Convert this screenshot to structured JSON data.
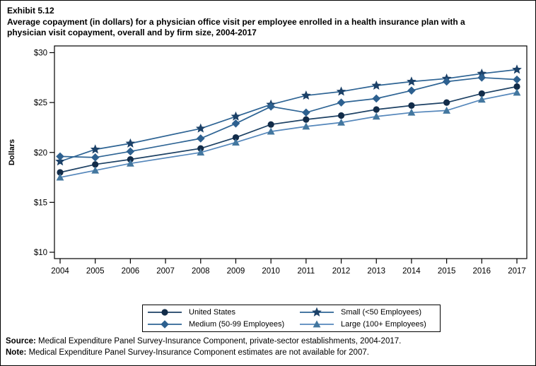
{
  "chart_data": {
    "type": "line",
    "exhibit_label": "Exhibit 5.12",
    "title_line1": "Average copayment (in dollars) for a physician office visit per employee enrolled in a health insurance plan with a",
    "title_line2": "physician visit copayment, overall and by firm size, 2004-2017",
    "ylabel": "Dollars",
    "ylim": [
      10,
      30
    ],
    "yticks": [
      {
        "value": 10,
        "label": "$10"
      },
      {
        "value": 15,
        "label": "$15"
      },
      {
        "value": 20,
        "label": "$20"
      },
      {
        "value": 25,
        "label": "$25"
      },
      {
        "value": 30,
        "label": "$30"
      }
    ],
    "x": [
      2004,
      2005,
      2006,
      2007,
      2008,
      2009,
      2010,
      2011,
      2012,
      2013,
      2014,
      2015,
      2016,
      2017
    ],
    "missing_year": 2007,
    "legend_position": "bottom-center",
    "grid": "off",
    "series": [
      {
        "name": "United States",
        "marker": "circle",
        "line_color": "#1d4164",
        "marker_color": "#122c49",
        "values": [
          18.0,
          18.8,
          19.3,
          null,
          20.4,
          21.5,
          22.8,
          23.3,
          23.7,
          24.3,
          24.7,
          25.0,
          25.9,
          26.6
        ]
      },
      {
        "name": "Small (<50 Employees)",
        "marker": "star",
        "line_color": "#2e6494",
        "marker_color": "#1c4168",
        "values": [
          19.1,
          20.3,
          20.9,
          null,
          22.4,
          23.6,
          24.8,
          25.7,
          26.1,
          26.7,
          27.1,
          27.4,
          27.9,
          28.3
        ]
      },
      {
        "name": "Medium (50-99 Employees)",
        "marker": "diamond",
        "line_color": "#2e6494",
        "marker_color": "#2d608f",
        "values": [
          19.6,
          19.5,
          20.1,
          null,
          21.4,
          22.9,
          24.6,
          24.0,
          25.0,
          25.4,
          26.2,
          27.1,
          27.5,
          27.3
        ]
      },
      {
        "name": "Large (100+ Employees)",
        "marker": "triangle",
        "line_color": "#5587bb",
        "marker_color": "#43779f",
        "values": [
          17.5,
          18.2,
          18.9,
          null,
          20.0,
          21.0,
          22.1,
          22.6,
          23.0,
          23.6,
          24.0,
          24.2,
          25.3,
          26.0
        ]
      }
    ]
  },
  "footnotes": {
    "source_label": "Source:",
    "source_text": " Medical Expenditure Panel Survey-Insurance Component, private-sector establishments, 2004-2017.",
    "note_label": "Note:",
    "note_text": " Medical Expenditure Panel Survey-Insurance Component estimates are not available for 2007."
  }
}
